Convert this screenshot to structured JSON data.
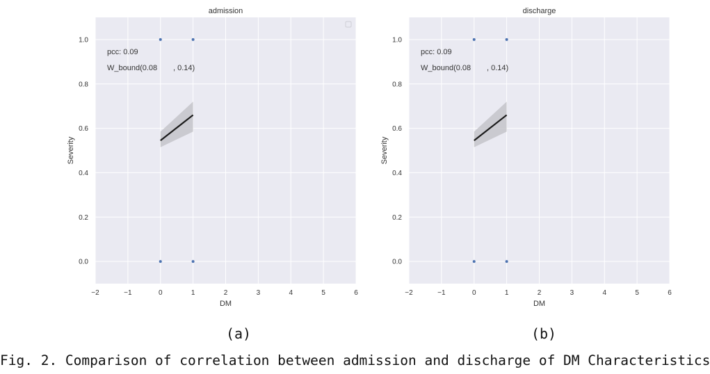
{
  "chart_data": [
    {
      "type": "scatter",
      "title": "admission",
      "xlabel": "DM",
      "ylabel": "Severity",
      "xlim": [
        -2,
        6
      ],
      "ylim": [
        -0.1,
        1.1
      ],
      "xticks": [
        -2,
        -1,
        0,
        1,
        2,
        3,
        4,
        5,
        6
      ],
      "yticks": [
        0.0,
        0.2,
        0.4,
        0.6,
        0.8,
        1.0
      ],
      "points": [
        {
          "x": 0,
          "y": 1.0
        },
        {
          "x": 1,
          "y": 1.0
        },
        {
          "x": 0,
          "y": 0.0
        },
        {
          "x": 1,
          "y": 0.0
        }
      ],
      "regression": {
        "x": [
          0,
          1
        ],
        "y": [
          0.545,
          0.66
        ],
        "ci_low": [
          0.515,
          0.585
        ],
        "ci_high": [
          0.585,
          0.72
        ]
      },
      "annotations": [
        "pcc: 0.09",
        "W_bound(0.08",
        ", 0.14)"
      ],
      "grid": true,
      "legend": "top-right (empty)",
      "colors": {
        "background": "#eaeaf2",
        "grid": "#ffffff",
        "points": "#4c72b0",
        "line": "#1a1a1a",
        "band": "#c4c4ca"
      }
    },
    {
      "type": "scatter",
      "title": "discharge",
      "xlabel": "DM",
      "ylabel": "Severity",
      "xlim": [
        -2,
        6
      ],
      "ylim": [
        -0.1,
        1.1
      ],
      "xticks": [
        -2,
        -1,
        0,
        1,
        2,
        3,
        4,
        5,
        6
      ],
      "yticks": [
        0.0,
        0.2,
        0.4,
        0.6,
        0.8,
        1.0
      ],
      "points": [
        {
          "x": 0,
          "y": 1.0
        },
        {
          "x": 1,
          "y": 1.0
        },
        {
          "x": 0,
          "y": 0.0
        },
        {
          "x": 1,
          "y": 0.0
        }
      ],
      "regression": {
        "x": [
          0,
          1
        ],
        "y": [
          0.545,
          0.66
        ],
        "ci_low": [
          0.515,
          0.585
        ],
        "ci_high": [
          0.585,
          0.72
        ]
      },
      "annotations": [
        "pcc: 0.09",
        "W_bound(0.08",
        ", 0.14)"
      ],
      "grid": true,
      "legend": "none",
      "colors": {
        "background": "#eaeaf2",
        "grid": "#ffffff",
        "points": "#4c72b0",
        "line": "#1a1a1a",
        "band": "#c4c4ca"
      }
    }
  ],
  "subcaptions": [
    "(a)",
    "(b)"
  ],
  "caption": "Fig. 2. Comparison of correlation between admission and discharge of DM Characteristics"
}
